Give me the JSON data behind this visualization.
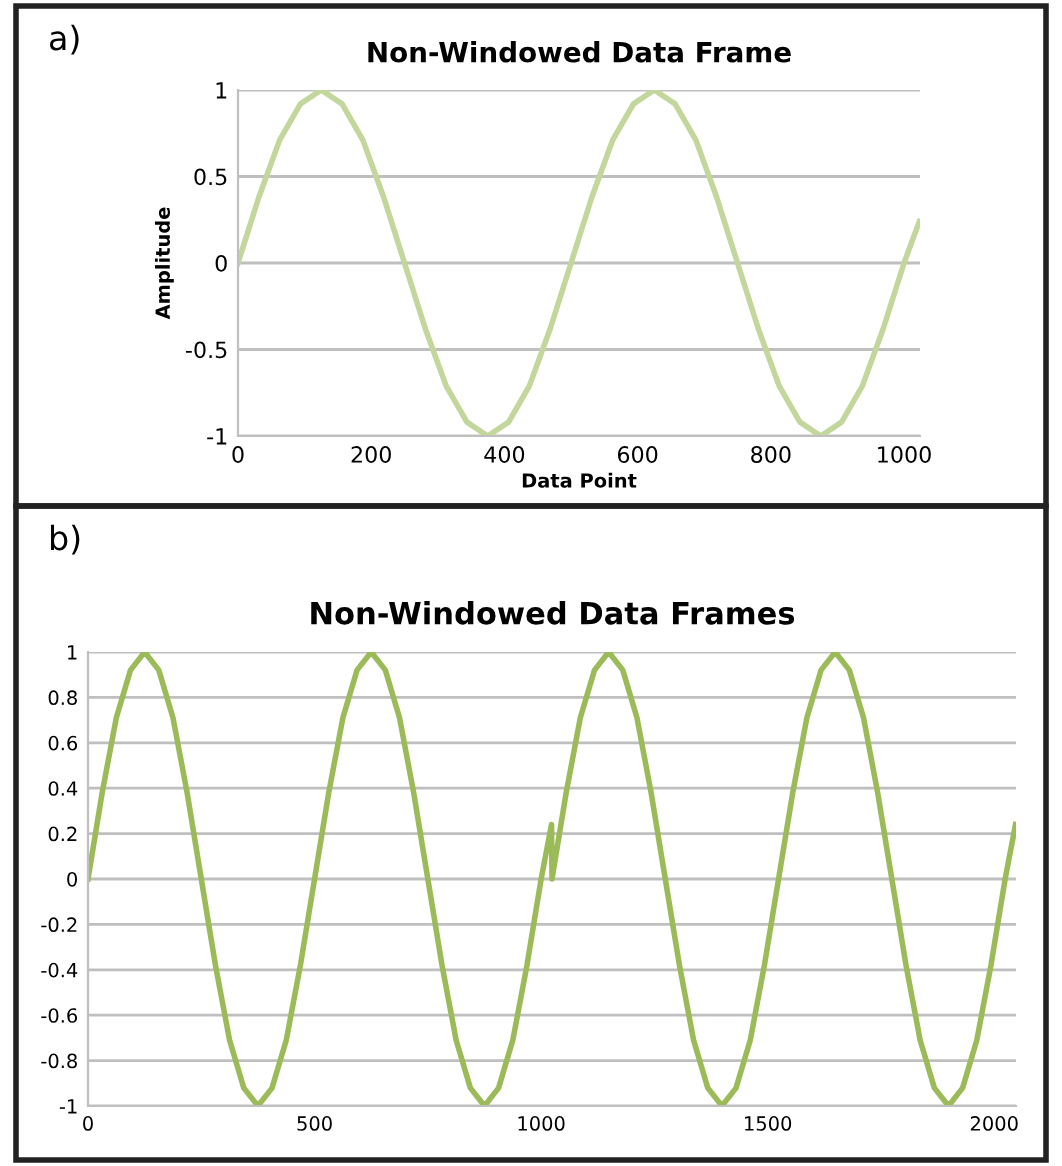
{
  "chart_data": [
    {
      "type": "line",
      "title": "Non-Windowed Data Frame",
      "xlabel": "Data Point",
      "ylabel": "Amplitude",
      "annotations": [
        "a)"
      ],
      "x": [
        0,
        31.25,
        62.5,
        93.75,
        125,
        156.25,
        187.5,
        218.75,
        250,
        281.25,
        312.5,
        343.75,
        375,
        406.25,
        437.5,
        468.75,
        500,
        531.25,
        562.5,
        593.75,
        625,
        656.25,
        687.5,
        718.75,
        750,
        781.25,
        812.5,
        843.75,
        875,
        906.25,
        937.5,
        968.75,
        1000,
        1023
      ],
      "series": [
        {
          "color": "#c3d69b",
          "values": [
            0,
            0.38,
            0.71,
            0.92,
            1,
            0.92,
            0.71,
            0.38,
            0,
            -0.38,
            -0.71,
            -0.92,
            -1,
            -0.92,
            -0.71,
            -0.38,
            0,
            0.38,
            0.71,
            0.92,
            1,
            0.92,
            0.71,
            0.38,
            0,
            -0.38,
            -0.71,
            -0.92,
            -1,
            -0.92,
            -0.71,
            -0.38,
            0,
            0.24
          ]
        }
      ],
      "xlim": [
        0,
        1024
      ],
      "xticks": [
        0,
        200,
        400,
        600,
        800,
        1000
      ],
      "ylim": [
        -1,
        1
      ],
      "yticks": [
        -1,
        -0.5,
        0,
        0.5,
        1
      ],
      "grid": "y",
      "legend": false
    },
    {
      "type": "line",
      "title": "Non-Windowed Data Frames",
      "annotations": [
        "b)"
      ],
      "x": [
        0,
        31.25,
        62.5,
        93.75,
        125,
        156.25,
        187.5,
        218.75,
        250,
        281.25,
        312.5,
        343.75,
        375,
        406.25,
        437.5,
        468.75,
        500,
        531.25,
        562.5,
        593.75,
        625,
        656.25,
        687.5,
        718.75,
        750,
        781.25,
        812.5,
        843.75,
        875,
        906.25,
        937.5,
        968.75,
        1000,
        1023,
        1024,
        1055.25,
        1086.5,
        1117.75,
        1149,
        1180.25,
        1211.5,
        1242.75,
        1274,
        1305.25,
        1336.5,
        1367.75,
        1399,
        1430.25,
        1461.5,
        1492.75,
        1524,
        1555.25,
        1586.5,
        1617.75,
        1649,
        1680.25,
        1711.5,
        1742.75,
        1774,
        1805.25,
        1836.5,
        1867.75,
        1899,
        1930.25,
        1961.5,
        1992.75,
        2024,
        2047
      ],
      "series": [
        {
          "color": "#9bbb59",
          "values": [
            0,
            0.38,
            0.71,
            0.92,
            1,
            0.92,
            0.71,
            0.38,
            0,
            -0.38,
            -0.71,
            -0.92,
            -1,
            -0.92,
            -0.71,
            -0.38,
            0,
            0.38,
            0.71,
            0.92,
            1,
            0.92,
            0.71,
            0.38,
            0,
            -0.38,
            -0.71,
            -0.92,
            -1,
            -0.92,
            -0.71,
            -0.38,
            0,
            0.24,
            0,
            0.38,
            0.71,
            0.92,
            1,
            0.92,
            0.71,
            0.38,
            0,
            -0.38,
            -0.71,
            -0.92,
            -1,
            -0.92,
            -0.71,
            -0.38,
            0,
            0.38,
            0.71,
            0.92,
            1,
            0.92,
            0.71,
            0.38,
            0,
            -0.38,
            -0.71,
            -0.92,
            -1,
            -0.92,
            -0.71,
            -0.38,
            0,
            0.24
          ]
        }
      ],
      "xlim": [
        0,
        2048
      ],
      "xticks": [
        0,
        500,
        1000,
        1500,
        2000
      ],
      "ylim": [
        -1,
        1
      ],
      "yticks": [
        -1,
        -0.8,
        -0.6,
        -0.4,
        -0.2,
        0,
        0.2,
        0.4,
        0.6,
        0.8,
        1
      ],
      "grid": "y",
      "legend": false
    }
  ]
}
